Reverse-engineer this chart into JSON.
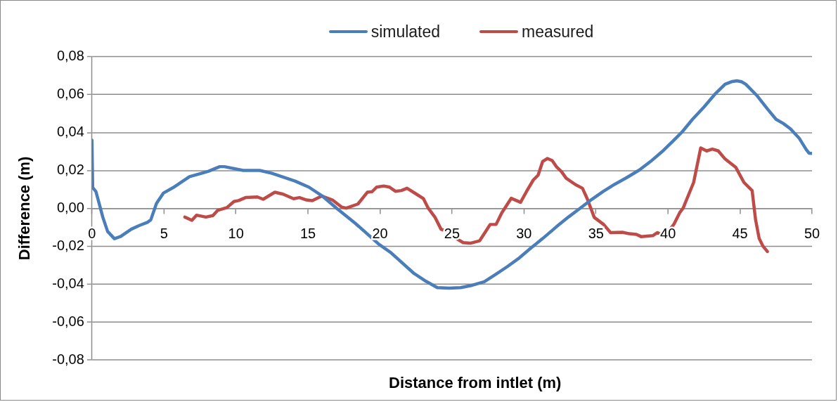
{
  "chart_data": {
    "type": "line",
    "xlabel": "Distance from intlet (m)",
    "ylabel": "Difference (m)",
    "xlim": [
      0,
      50
    ],
    "xticks": [
      0,
      5,
      10,
      15,
      20,
      25,
      30,
      35,
      40,
      45,
      50
    ],
    "ylim": [
      -0.08,
      0.08
    ],
    "yticks": [
      {
        "value": -0.08,
        "label": "-0,08"
      },
      {
        "value": -0.06,
        "label": "-0,06"
      },
      {
        "value": -0.04,
        "label": "-0,04"
      },
      {
        "value": -0.02,
        "label": "-0,02"
      },
      {
        "value": 0,
        "label": "0,00"
      },
      {
        "value": 0.02,
        "label": "0,02"
      },
      {
        "value": 0.04,
        "label": "0,04"
      },
      {
        "value": 0.06,
        "label": "0,06"
      },
      {
        "value": 0.08,
        "label": "0,08"
      }
    ],
    "grid": "y",
    "legend": "top",
    "marker": "none",
    "line_style": "solid",
    "series": [
      {
        "name": "simulated",
        "color": "#4a7ebb",
        "x": [
          0,
          0.05,
          0.28,
          0.76,
          1.09,
          1.56,
          2.0,
          2.73,
          3.3,
          3.85,
          4.09,
          4.48,
          4.97,
          5.65,
          6.77,
          7.6,
          8.1,
          8.87,
          9.2,
          10.5,
          11.65,
          12.5,
          14.1,
          15.06,
          16.03,
          17.0,
          18.3,
          19.93,
          20.75,
          22.37,
          23.2,
          23.98,
          24.8,
          25.6,
          26.4,
          27.24,
          28.0,
          28.85,
          29.7,
          30.5,
          31.3,
          32.27,
          33.1,
          33.9,
          34.7,
          35.5,
          36.3,
          37.15,
          38.0,
          38.8,
          39.6,
          40.4,
          41.0,
          41.7,
          42.5,
          43.3,
          43.96,
          44.4,
          44.78,
          45.1,
          45.4,
          46.2,
          46.9,
          47.5,
          48.0,
          48.5,
          49.1,
          49.6,
          49.8,
          50
        ],
        "values": [
          0.036,
          0.011,
          0.0088,
          -0.0048,
          -0.0122,
          -0.016,
          -0.0148,
          -0.011,
          -0.009,
          -0.0074,
          -0.006,
          0.0026,
          0.0081,
          0.011,
          0.0167,
          0.0185,
          0.0196,
          0.022,
          0.022,
          0.02,
          0.02,
          0.0185,
          0.0144,
          0.0112,
          0.0063,
          0.0,
          -0.008,
          -0.019,
          -0.0233,
          -0.0344,
          -0.0385,
          -0.0418,
          -0.0421,
          -0.0418,
          -0.0406,
          -0.0387,
          -0.035,
          -0.0307,
          -0.026,
          -0.0208,
          -0.0159,
          -0.0096,
          -0.0045,
          0.0001,
          0.0047,
          0.0089,
          0.0127,
          0.0163,
          0.0202,
          0.0248,
          0.03,
          0.0359,
          0.0405,
          0.047,
          0.0535,
          0.0606,
          0.0655,
          0.0668,
          0.0673,
          0.0668,
          0.0655,
          0.0593,
          0.0525,
          0.047,
          0.0448,
          0.042,
          0.0371,
          0.031,
          0.0291,
          0.029
        ]
      },
      {
        "name": "measured",
        "color": "#be4b48",
        "x": [
          6.45,
          6.94,
          7.26,
          7.91,
          8.4,
          8.72,
          9.37,
          9.86,
          10.18,
          10.67,
          11.49,
          11.89,
          12.7,
          13.27,
          14.0,
          14.41,
          14.9,
          15.3,
          15.95,
          16.7,
          17.33,
          17.66,
          18.47,
          19.12,
          19.45,
          19.77,
          20.26,
          20.66,
          21.07,
          21.48,
          21.88,
          22.53,
          23.02,
          23.35,
          23.83,
          24.24,
          24.65,
          25.3,
          25.78,
          26.27,
          26.92,
          27.24,
          27.65,
          28.06,
          28.46,
          29.11,
          29.76,
          30.17,
          30.65,
          30.98,
          31.3,
          31.63,
          31.96,
          32.28,
          32.6,
          32.93,
          33.58,
          34.06,
          34.39,
          34.88,
          35.53,
          36.01,
          36.83,
          37.32,
          37.8,
          38.13,
          38.94,
          39.27,
          39.75,
          40.4,
          40.81,
          41.05,
          41.78,
          42.27,
          42.68,
          43.08,
          43.49,
          43.97,
          44.7,
          45.27,
          45.84,
          46.08,
          46.33,
          46.6,
          46.9
        ],
        "values": [
          -0.0046,
          -0.0063,
          -0.0036,
          -0.0046,
          -0.0038,
          -0.0011,
          0.0004,
          0.0036,
          0.0041,
          0.0057,
          0.006,
          0.0048,
          0.0085,
          0.0075,
          0.0051,
          0.0057,
          0.0044,
          0.0041,
          0.0065,
          0.0044,
          0.0007,
          0.0001,
          0.0023,
          0.0085,
          0.0088,
          0.0112,
          0.0118,
          0.0112,
          0.009,
          0.0094,
          0.0106,
          0.0075,
          0.0051,
          0.0001,
          -0.0048,
          -0.011,
          -0.0122,
          -0.0159,
          -0.0181,
          -0.0184,
          -0.0171,
          -0.0134,
          -0.0085,
          -0.0085,
          -0.0023,
          0.0053,
          0.0032,
          0.0088,
          0.015,
          0.0175,
          0.0248,
          0.0263,
          0.0252,
          0.0217,
          0.0194,
          0.0159,
          0.0125,
          0.0106,
          0.0051,
          -0.0048,
          -0.0085,
          -0.0128,
          -0.0126,
          -0.0134,
          -0.0137,
          -0.0149,
          -0.0144,
          -0.0128,
          -0.0147,
          -0.0085,
          -0.0023,
          0.0001,
          0.0137,
          0.0319,
          0.0303,
          0.0313,
          0.0303,
          0.026,
          0.0217,
          0.0137,
          0.0094,
          -0.006,
          -0.0159,
          -0.02,
          -0.0228
        ]
      }
    ]
  }
}
